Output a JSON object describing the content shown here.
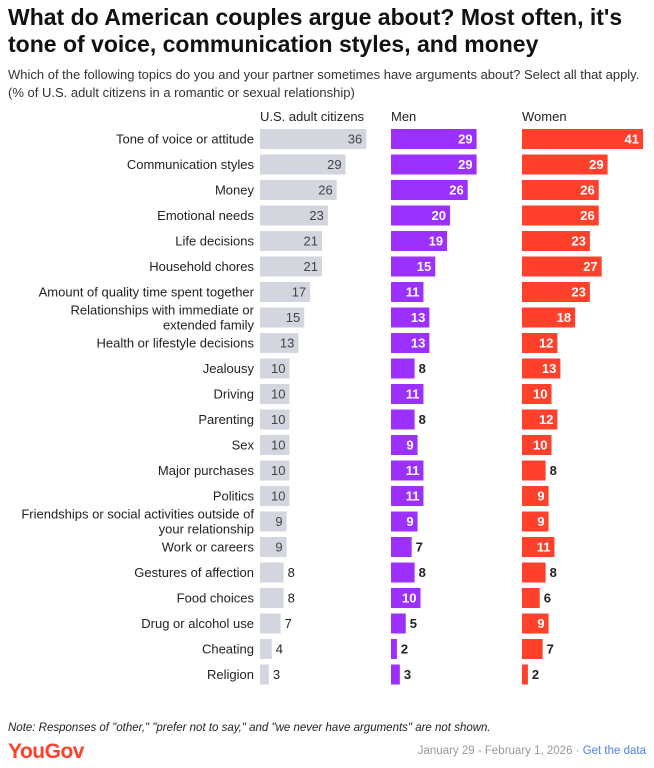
{
  "title": "What do American couples argue about? Most often, it's tone of voice, communication styles, and money",
  "subtitle": "Which of the following topics do you and your partner sometimes have arguments about? Select all that apply. (% of U.S. adult citizens in a romantic or sexual relationship)",
  "note": "Note: Responses of \"other,\" \"prefer not to say,\" and \"we never have arguments\" are not shown.",
  "logo": "YouGov",
  "footer": {
    "date": "January 29 - February 1, 2026",
    "separator": " · ",
    "link": "Get the data"
  },
  "colors": {
    "all": "#d3d6de",
    "men": "#9b30ff",
    "women": "#ff412c"
  },
  "chart_data": {
    "type": "bar",
    "orientation": "horizontal",
    "categories": [
      "Tone of voice or attitude",
      "Communication styles",
      "Money",
      "Emotional needs",
      "Life decisions",
      "Household chores",
      "Amount of quality time spent together",
      "Relationships with immediate or\nextended family",
      "Health or lifestyle decisions",
      "Jealousy",
      "Driving",
      "Parenting",
      "Sex",
      "Major purchases",
      "Politics",
      "Friendships or social activities outside of\nyour relationship",
      "Work or careers",
      "Gestures of affection",
      "Food choices",
      "Drug or alcohol use",
      "Cheating",
      "Religion"
    ],
    "series": [
      {
        "name": "U.S. adult citizens",
        "values": [
          36,
          29,
          26,
          23,
          21,
          21,
          17,
          15,
          13,
          10,
          10,
          10,
          10,
          10,
          10,
          9,
          9,
          8,
          8,
          7,
          4,
          3
        ]
      },
      {
        "name": "Men",
        "values": [
          29,
          29,
          26,
          20,
          19,
          15,
          11,
          13,
          13,
          8,
          11,
          8,
          9,
          11,
          11,
          9,
          7,
          8,
          10,
          5,
          2,
          3
        ]
      },
      {
        "name": "Women",
        "values": [
          41,
          29,
          26,
          26,
          23,
          27,
          23,
          18,
          12,
          13,
          10,
          12,
          10,
          8,
          9,
          9,
          11,
          8,
          6,
          9,
          7,
          2
        ]
      }
    ],
    "xlim": [
      0,
      41
    ]
  }
}
